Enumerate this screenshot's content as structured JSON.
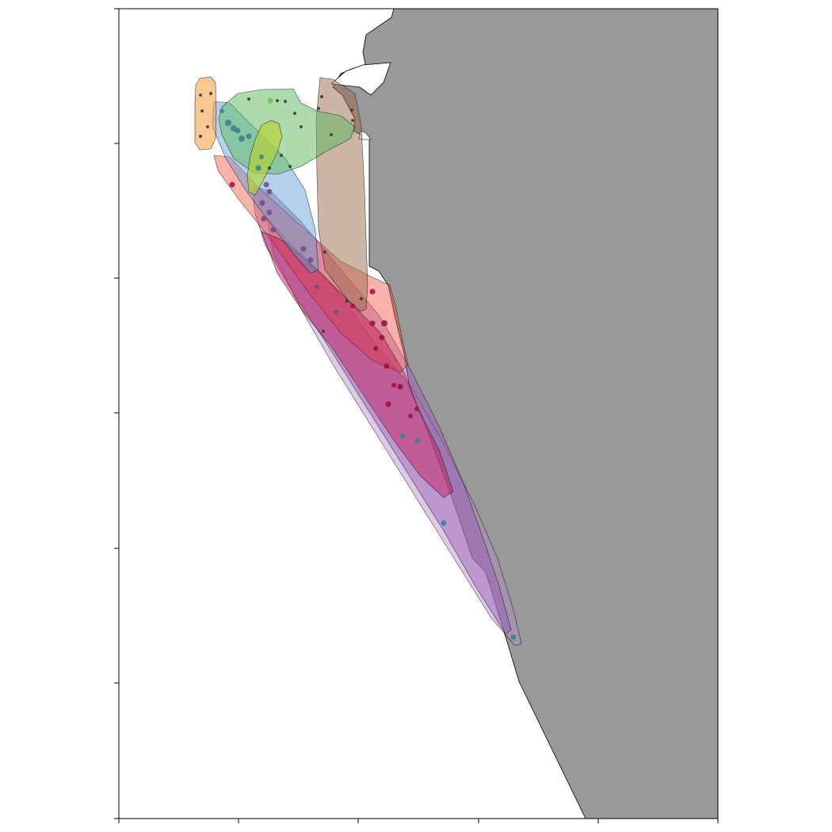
{
  "map": {
    "colors": {
      "background": "#ffffff",
      "land": "#999999",
      "frame": "#000000",
      "orange": "#f5a14b",
      "green": "#5cb85c",
      "lime": "#b5d334",
      "brown": "#9c6b4e",
      "blue": "#5b9bd5",
      "red": "#f05545",
      "purple": "#9b59b6",
      "magenta": "#c0164f",
      "lilac": "#b48bc6",
      "point_dark": "#333333",
      "point_teal": "#3a7f8a",
      "point_crimson": "#9e0c3e",
      "point_violet": "#6d4a8a",
      "point_lightgreen": "#66c14a"
    },
    "grid": false,
    "tick_labels_visible": false,
    "zones": [
      {
        "color": "orange"
      },
      {
        "color": "green"
      },
      {
        "color": "lime"
      },
      {
        "color": "brown"
      },
      {
        "color": "blue"
      },
      {
        "color": "red"
      },
      {
        "color": "purple"
      },
      {
        "color": "magenta"
      },
      {
        "color": "lilac"
      }
    ]
  }
}
